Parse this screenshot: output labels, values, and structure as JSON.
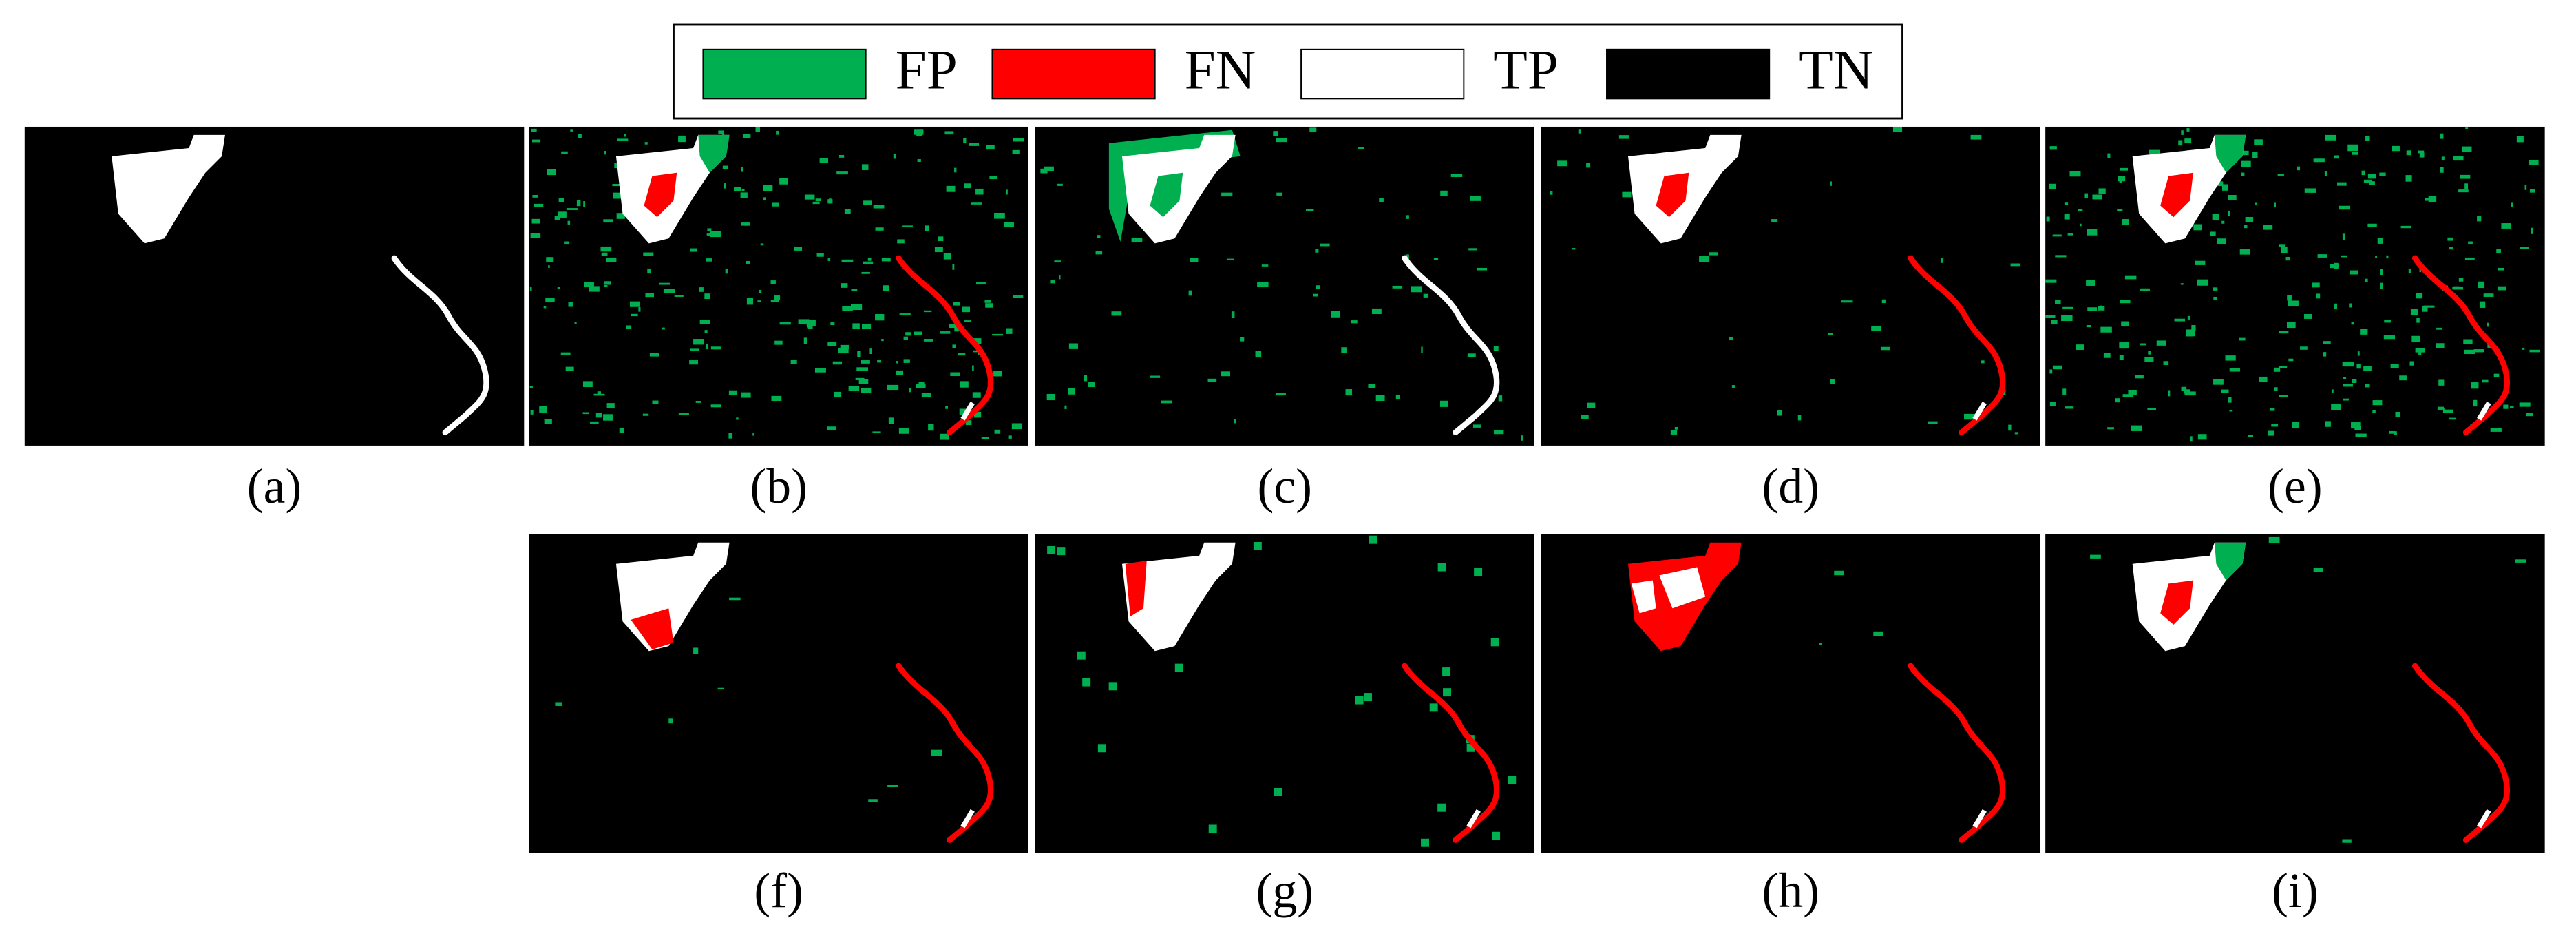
{
  "legend": [
    {
      "label": "FP",
      "color": "#00b050"
    },
    {
      "label": "FN",
      "color": "#ff0000"
    },
    {
      "label": "TP",
      "color": "#ffffff"
    },
    {
      "label": "TN",
      "color": "#000000"
    }
  ],
  "panels": [
    "(a)",
    "(b)",
    "(c)",
    "(d)",
    "(e)",
    "(f)",
    "(g)",
    "(h)",
    "(i)"
  ]
}
